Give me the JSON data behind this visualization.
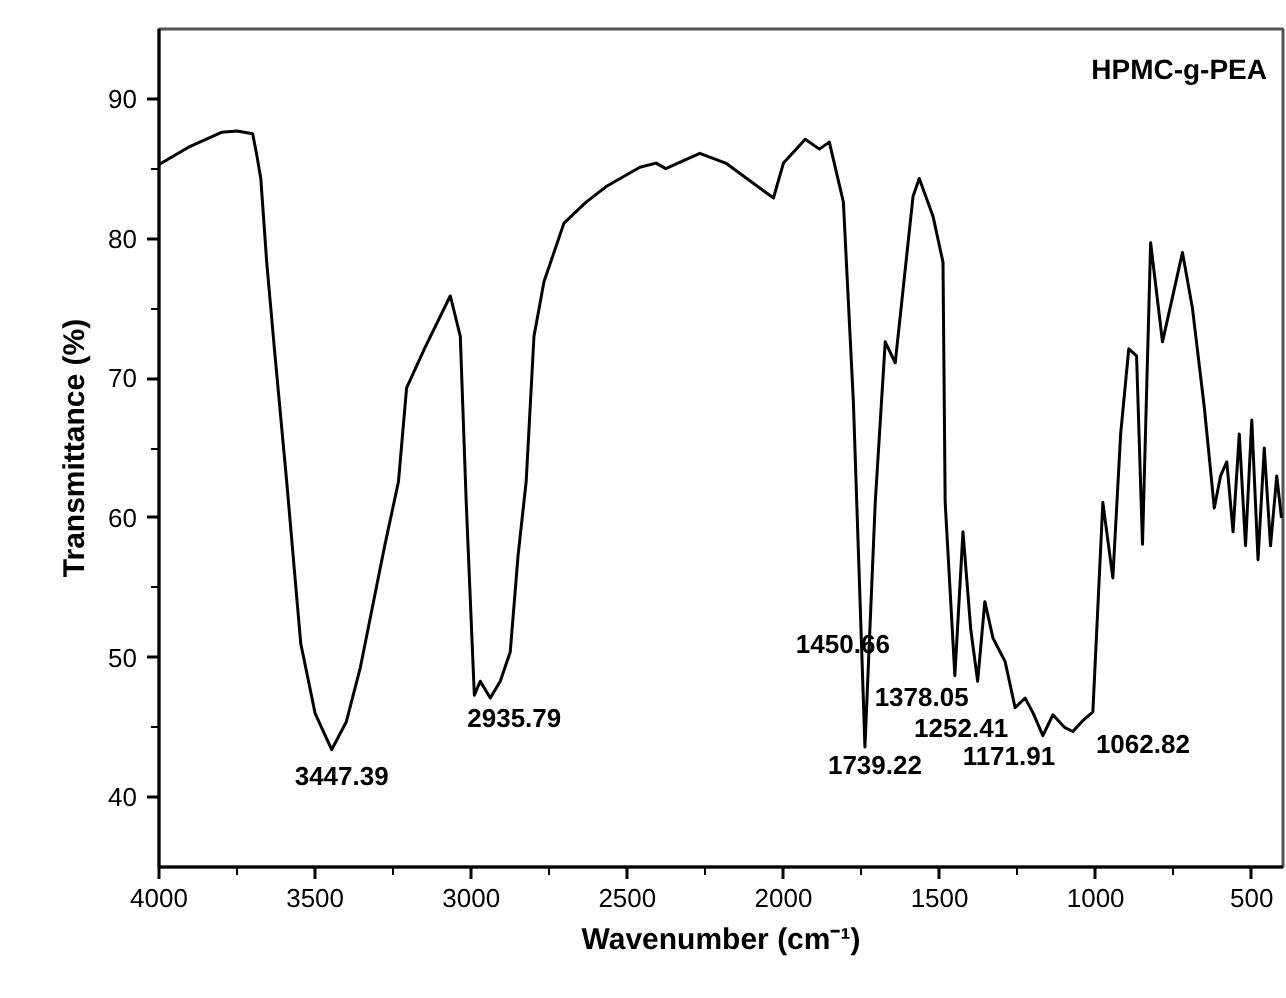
{
  "chart_data": {
    "type": "line",
    "title": "HPMC-g-PEA",
    "xlabel": "Wavenumber (cm⁻¹)",
    "ylabel": "Transmittance (%)",
    "xlim": [
      4000,
      400
    ],
    "ylim": [
      35,
      95
    ],
    "xticks": [
      4000,
      3500,
      3000,
      2500,
      2000,
      1500,
      1000,
      500
    ],
    "yticks": [
      40,
      50,
      60,
      70,
      80,
      90
    ],
    "grid": false,
    "marker": "none",
    "line_style": "solid",
    "x": [
      4000,
      3900,
      3800,
      3750,
      3700,
      3687,
      3674,
      3655,
      3630,
      3591,
      3546,
      3500,
      3447,
      3400,
      3355,
      3278,
      3233,
      3207,
      3150,
      3067,
      3035,
      3016,
      2990,
      2971,
      2939,
      2907,
      2875,
      2850,
      2824,
      2799,
      2767,
      2703,
      2632,
      2569,
      2460,
      2408,
      2377,
      2268,
      2185,
      2032,
      2000,
      1930,
      1885,
      1853,
      1808,
      1776,
      1739,
      1706,
      1674,
      1642,
      1585,
      1565,
      1521,
      1489,
      1482,
      1451,
      1425,
      1400,
      1378,
      1355,
      1329,
      1290,
      1258,
      1226,
      1200,
      1169,
      1137,
      1100,
      1073,
      1040,
      1009,
      977,
      945,
      920,
      894,
      869,
      850,
      824,
      786,
      722,
      690,
      652,
      620,
      600,
      580,
      560,
      540,
      520,
      500,
      480,
      460,
      440,
      420,
      405
    ],
    "series": [
      {
        "color": "#000000",
        "values": [
          85.3,
          86.6,
          87.6,
          87.7,
          87.5,
          86,
          84.3,
          78.3,
          72,
          62.6,
          51,
          46,
          43.4,
          45.4,
          49.3,
          57.9,
          62.6,
          69.3,
          72.1,
          75.9,
          73,
          61.1,
          47.3,
          48.3,
          47.1,
          48.3,
          50.4,
          57.3,
          62.6,
          73,
          76.9,
          81.1,
          82.6,
          83.7,
          85.1,
          85.4,
          85,
          86.1,
          85.4,
          82.9,
          85.4,
          87.1,
          86.4,
          86.9,
          82.6,
          68.3,
          43.6,
          61.1,
          72.6,
          71.1,
          83,
          84.3,
          81.6,
          78.3,
          61.1,
          48.7,
          59,
          52,
          48.3,
          54,
          51.4,
          49.7,
          46.4,
          47.1,
          46,
          44.4,
          45.9,
          45,
          44.7,
          45.5,
          46.1,
          61.1,
          55.7,
          66,
          72.1,
          71.6,
          58.1,
          79.7,
          72.6,
          79,
          75,
          67.9,
          60.7,
          63,
          64,
          59,
          66,
          58,
          67,
          57,
          65,
          58,
          63,
          60
        ]
      }
    ],
    "annotations": [
      {
        "text": "3447.39",
        "x": 3447,
        "y": 43.4
      },
      {
        "text": "2935.79",
        "x": 2939,
        "y": 47.1
      },
      {
        "text": "1450.66",
        "x": 1451,
        "y": 48.7
      },
      {
        "text": "1378.05",
        "x": 1378,
        "y": 48.3
      },
      {
        "text": "1252.41",
        "x": 1258,
        "y": 46.4
      },
      {
        "text": "1739.22",
        "x": 1739,
        "y": 43.6
      },
      {
        "text": "1171.91",
        "x": 1169,
        "y": 44.4
      },
      {
        "text": "1062.82",
        "x": 1073,
        "y": 44.7
      }
    ]
  }
}
